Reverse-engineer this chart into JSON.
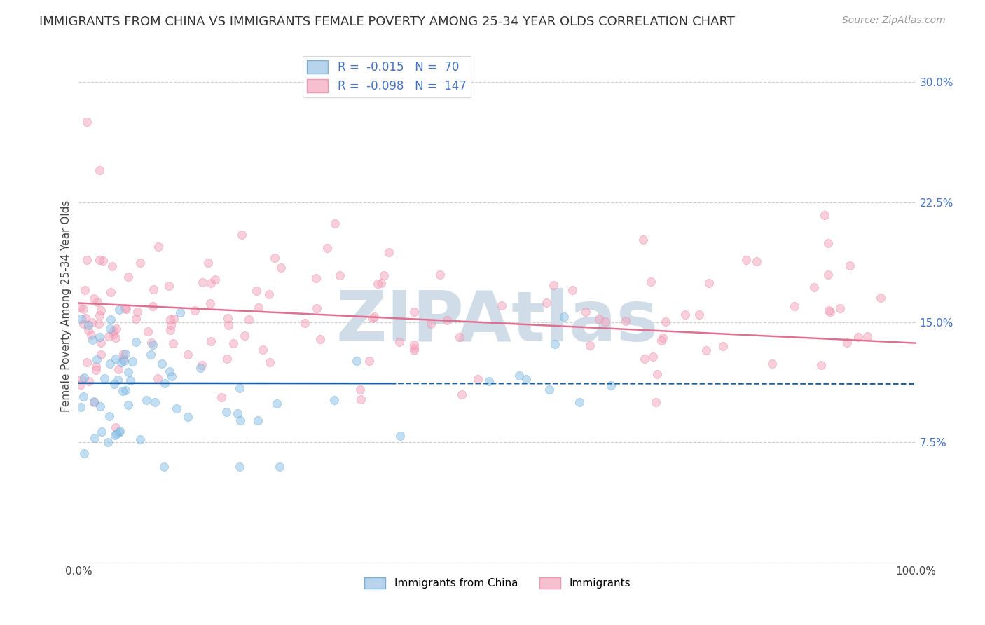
{
  "title": "IMMIGRANTS FROM CHINA VS IMMIGRANTS FEMALE POVERTY AMONG 25-34 YEAR OLDS CORRELATION CHART",
  "source": "Source: ZipAtlas.com",
  "ylabel": "Female Poverty Among 25-34 Year Olds",
  "series_blue": {
    "label": "Immigrants from China",
    "color": "#8fc4e8",
    "edge_color": "#5a9fd4",
    "R": -0.015,
    "N": 70
  },
  "series_pink": {
    "label": "Immigrants",
    "color": "#f4a8bf",
    "edge_color": "#e8789a",
    "R": -0.098,
    "N": 147
  },
  "xlim": [
    0,
    100
  ],
  "ylim": [
    0,
    32
  ],
  "yticks": [
    0,
    7.5,
    15.0,
    22.5,
    30.0
  ],
  "yticklabels": [
    "",
    "7.5%",
    "15.0%",
    "22.5%",
    "30.0%"
  ],
  "right_yticklabels": [
    "",
    "7.5%",
    "15.0%",
    "22.5%",
    "30.0%"
  ],
  "xticks": [
    0,
    100
  ],
  "xticklabels": [
    "0.0%",
    "100.0%"
  ],
  "marker_size": 75,
  "alpha": 0.55,
  "title_fontsize": 13,
  "axis_label_fontsize": 11,
  "tick_fontsize": 11,
  "source_fontsize": 10,
  "grid_color": "#cccccc",
  "background_color": "#ffffff",
  "trend_line_blue_color": "#1a5fa8",
  "trend_line_pink_color": "#e07090",
  "watermark": "ZIPAtlas",
  "watermark_color": "#d0dde8",
  "watermark_fontsize": 72,
  "legend_fontsize": 12
}
